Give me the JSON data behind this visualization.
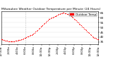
{
  "title": "Milwaukee Weather Outdoor Temperature per Minute (24 Hours)",
  "legend_label": "Outdoor Temp",
  "dot_color": "#ff0000",
  "legend_color": "#ff0000",
  "background_color": "#ffffff",
  "grid_color": "#cccccc",
  "text_color": "#000000",
  "ylim": [
    33,
    67
  ],
  "yticks": [
    35,
    40,
    45,
    50,
    55,
    60,
    65
  ],
  "x_minutes": [
    0,
    15,
    30,
    45,
    60,
    75,
    90,
    105,
    120,
    135,
    150,
    165,
    180,
    195,
    210,
    225,
    240,
    255,
    270,
    285,
    300,
    315,
    330,
    345,
    360,
    375,
    390,
    405,
    420,
    435,
    450,
    465,
    480,
    495,
    510,
    525,
    540,
    555,
    570,
    585,
    600,
    615,
    630,
    645,
    660,
    675,
    690,
    705,
    720,
    735,
    750,
    765,
    780,
    795,
    810,
    825,
    840,
    855,
    870,
    885,
    900,
    915,
    930,
    945,
    960,
    975,
    990,
    1005,
    1020,
    1035,
    1050,
    1065,
    1080,
    1095,
    1110,
    1125,
    1140,
    1155,
    1170,
    1185,
    1200,
    1215,
    1230,
    1245,
    1260,
    1275,
    1290,
    1305,
    1320,
    1335,
    1350,
    1365,
    1380,
    1395,
    1410,
    1425,
    1440
  ],
  "temps": [
    38,
    37.5,
    37,
    36.8,
    36.5,
    36.3,
    36,
    35.8,
    35.7,
    35.5,
    35.4,
    35.5,
    35.6,
    35.8,
    36,
    36.2,
    36.5,
    36.8,
    37,
    37.2,
    37.5,
    38,
    38.5,
    39,
    39.5,
    40,
    40.5,
    41,
    41.5,
    42,
    42.5,
    43,
    43.8,
    44.5,
    45.5,
    46.5,
    47.5,
    48.5,
    49.5,
    50.5,
    51.5,
    52.5,
    53.5,
    54.5,
    55.5,
    56.5,
    57.5,
    58.5,
    59,
    59.5,
    60,
    60.5,
    61,
    61.5,
    62,
    62.5,
    63,
    63.5,
    64,
    64.5,
    64.8,
    65,
    65,
    64.8,
    64.5,
    64.2,
    63.8,
    63.2,
    62.5,
    61.8,
    61,
    60,
    59,
    58,
    57,
    56,
    55,
    54,
    53,
    52,
    51,
    50,
    49,
    48,
    47,
    46,
    45,
    44,
    43,
    42,
    41,
    40,
    39.5,
    39,
    38.5,
    38,
    37.5
  ],
  "vline_x": 360,
  "xtick_positions": [
    0,
    120,
    240,
    360,
    480,
    600,
    720,
    840,
    960,
    1080,
    1200,
    1320,
    1440
  ],
  "xtick_labels": [
    "12:00a",
    "2:00a",
    "4:00a",
    "6:00a",
    "8:00a",
    "10:00a",
    "12:00p",
    "2:00p",
    "4:00p",
    "6:00p",
    "8:00p",
    "10:00p",
    "12:00a"
  ],
  "dot_size": 0.8,
  "title_fontsize": 3.2,
  "tick_fontsize": 3.0,
  "legend_fontsize": 3.0
}
